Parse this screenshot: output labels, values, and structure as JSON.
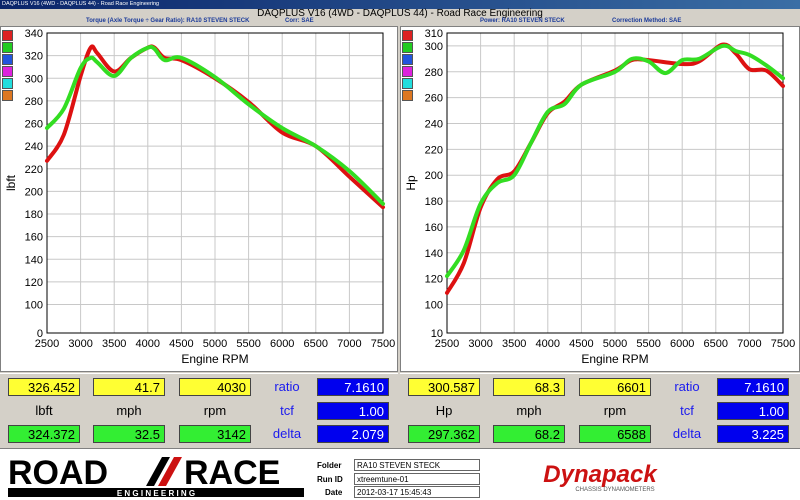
{
  "window": {
    "title": "DAQPLUS V16 (4WD - DAQPLUS 44) - Road Race Engineering"
  },
  "header": {
    "main_title": "DAQPLUS V16 (4WD - DAQPLUS 44) - Road Race Engineering",
    "torque_subtitle": "Torque (Axle Torque ÷ Gear Ratio): RA10 STEVEN STECK",
    "torque_corr": "Corr: SAE",
    "power_subtitle": "Power: RA10 STEVEN STECK",
    "power_corr": "Correction Method: SAE"
  },
  "colors": {
    "run1": "#dd1111",
    "run2": "#33dd22",
    "swatches": [
      "#dd2222",
      "#22cc22",
      "#2255dd",
      "#dd22dd",
      "#22dddd",
      "#dd7722"
    ]
  },
  "chart_data": [
    {
      "type": "line",
      "xlabel": "Engine RPM",
      "ylabel": "lbft",
      "xlim": [
        2500,
        7500
      ],
      "ylim": [
        0,
        340
      ],
      "x_ticks": [
        2500,
        3000,
        3500,
        4000,
        4500,
        5000,
        5500,
        6000,
        6500,
        7000,
        7500
      ],
      "y_ticks": [
        0,
        100,
        120,
        140,
        160,
        180,
        200,
        220,
        240,
        260,
        280,
        300,
        320,
        340
      ],
      "y_scale": "broken axis (0, then 100–340)",
      "grid": true,
      "series": [
        {
          "color": "#dd1111",
          "x": [
            2500,
            2750,
            3000,
            3150,
            3250,
            3500,
            3750,
            4000,
            4100,
            4250,
            4500,
            5000,
            5500,
            6000,
            6500,
            7000,
            7500
          ],
          "values": [
            227,
            250,
            302,
            327,
            322,
            306,
            318,
            327,
            327,
            318,
            316,
            300,
            279,
            252,
            240,
            213,
            186
          ]
        },
        {
          "color": "#33dd22",
          "x": [
            2500,
            2750,
            3000,
            3150,
            3250,
            3500,
            3750,
            4000,
            4100,
            4250,
            4500,
            5000,
            5500,
            6000,
            6500,
            7000,
            7500
          ],
          "values": [
            256,
            273,
            309,
            318,
            314,
            302,
            318,
            327,
            326,
            316,
            318,
            301,
            277,
            256,
            240,
            218,
            189
          ]
        }
      ]
    },
    {
      "type": "line",
      "xlabel": "Engine RPM",
      "ylabel": "Hp",
      "xlim": [
        2500,
        7500
      ],
      "ylim": [
        10,
        310
      ],
      "x_ticks": [
        2500,
        3000,
        3500,
        4000,
        4500,
        5000,
        5500,
        6000,
        6500,
        7000,
        7500
      ],
      "y_ticks": [
        10,
        100,
        120,
        140,
        160,
        180,
        200,
        220,
        240,
        260,
        280,
        300,
        310
      ],
      "y_scale": "broken axis (10, then 100–310)",
      "grid": true,
      "series": [
        {
          "color": "#dd1111",
          "x": [
            2500,
            2750,
            3000,
            3250,
            3500,
            3750,
            4000,
            4250,
            4500,
            5000,
            5250,
            5500,
            6000,
            6250,
            6600,
            6800,
            7000,
            7250,
            7500
          ],
          "values": [
            109,
            132,
            175,
            197,
            203,
            225,
            248,
            257,
            270,
            281,
            289,
            289,
            286,
            288,
            301,
            294,
            282,
            281,
            269
          ]
        },
        {
          "color": "#33dd22",
          "x": [
            2500,
            2750,
            3000,
            3250,
            3500,
            3750,
            4000,
            4250,
            4500,
            5000,
            5250,
            5500,
            5750,
            6000,
            6250,
            6600,
            6800,
            7000,
            7250,
            7500
          ],
          "values": [
            122,
            142,
            178,
            194,
            200,
            225,
            249,
            255,
            270,
            280,
            290,
            288,
            279,
            289,
            290,
            300,
            296,
            293,
            285,
            275
          ]
        }
      ]
    }
  ],
  "readouts": {
    "left": {
      "top": [
        "326.452",
        "41.7",
        "4030"
      ],
      "labels": [
        "lbft",
        "mph",
        "rpm"
      ],
      "bottom": [
        "324.372",
        "32.5",
        "3142"
      ],
      "side_labels": [
        "ratio",
        "tcf",
        "delta"
      ],
      "side_values": [
        "7.1610",
        "1.00",
        "2.079"
      ]
    },
    "right": {
      "top": [
        "300.587",
        "68.3",
        "6601"
      ],
      "labels": [
        "Hp",
        "mph",
        "rpm"
      ],
      "bottom": [
        "297.362",
        "68.2",
        "6588"
      ],
      "side_labels": [
        "ratio",
        "tcf",
        "delta"
      ],
      "side_values": [
        "7.1610",
        "1.00",
        "3.225"
      ]
    }
  },
  "footer": {
    "logo_text_1": "ROAD",
    "logo_text_2": "RACE",
    "logo_sub": "E N G I N E E R I N G",
    "folder_label": "Folder",
    "folder_value": "RA10 STEVEN STECK",
    "runid_label": "Run ID",
    "runid_value": "xtreemtune-01",
    "date_label": "Date",
    "date_value": "2012-03-17 15:45:43",
    "brand": "Dynapack",
    "brand_sub": "CHASSIS DYNAMOMETERS"
  }
}
